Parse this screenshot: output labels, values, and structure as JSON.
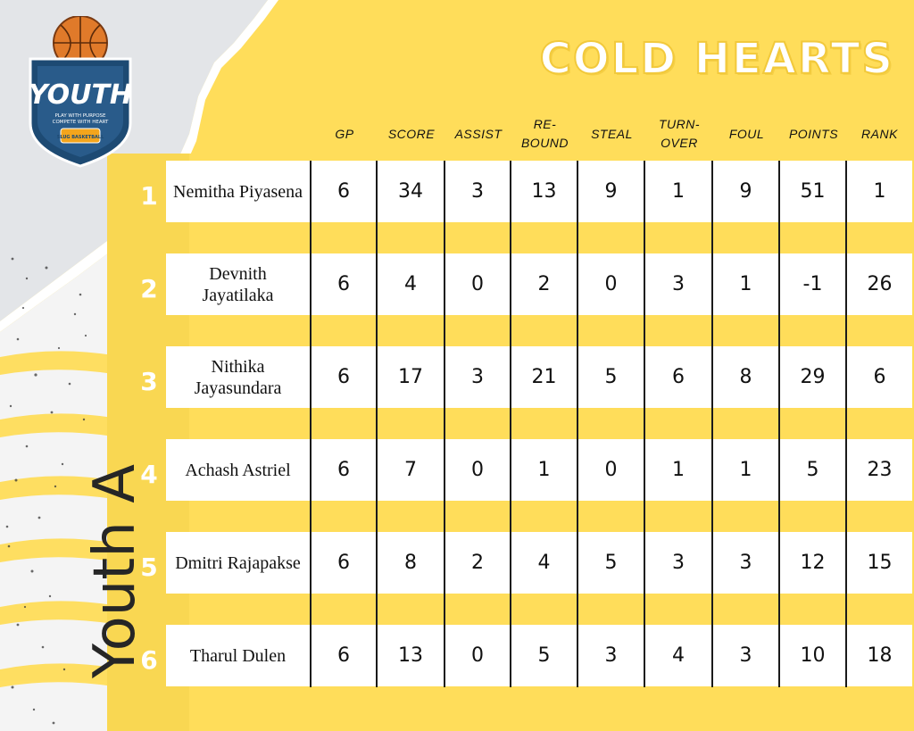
{
  "team": {
    "title": "COLD HEARTS",
    "division": "Youth A"
  },
  "logo": {
    "brand": "YOUTH",
    "tagline_1": "PLAY WITH PURPOSE",
    "tagline_2": "COMPETE WITH HEART",
    "badge": "SLUG BASKETBALL"
  },
  "colors": {
    "background": "#ffdd5a",
    "title_outline": "#f2c93b",
    "row_fill": "#ffffff",
    "shield_blue": "#1d4a73",
    "ball_orange": "#e07a2a"
  },
  "table": {
    "headers": [
      "GP",
      "SCORE",
      "ASSIST",
      "RE-\nBOUND",
      "STEAL",
      "TURN-\nOVER",
      "FOUL",
      "POINTS",
      "RANK"
    ],
    "rows": [
      {
        "no": "1",
        "name": "Nemitha Piyasena",
        "stats": [
          "6",
          "34",
          "3",
          "13",
          "9",
          "1",
          "9",
          "51",
          "1"
        ]
      },
      {
        "no": "2",
        "name": "Devnith Jayatilaka",
        "stats": [
          "6",
          "4",
          "0",
          "2",
          "0",
          "3",
          "1",
          "-1",
          "26"
        ]
      },
      {
        "no": "3",
        "name": "Nithika Jayasundara",
        "stats": [
          "6",
          "17",
          "3",
          "21",
          "5",
          "6",
          "8",
          "29",
          "6"
        ]
      },
      {
        "no": "4",
        "name": "Achash Astriel",
        "stats": [
          "6",
          "7",
          "0",
          "1",
          "0",
          "1",
          "1",
          "5",
          "23"
        ]
      },
      {
        "no": "5",
        "name": "Dmitri Rajapakse",
        "stats": [
          "6",
          "8",
          "2",
          "4",
          "5",
          "3",
          "3",
          "12",
          "15"
        ]
      },
      {
        "no": "6",
        "name": "Tharul Dulen",
        "stats": [
          "6",
          "13",
          "0",
          "5",
          "3",
          "4",
          "3",
          "10",
          "18"
        ]
      }
    ]
  }
}
